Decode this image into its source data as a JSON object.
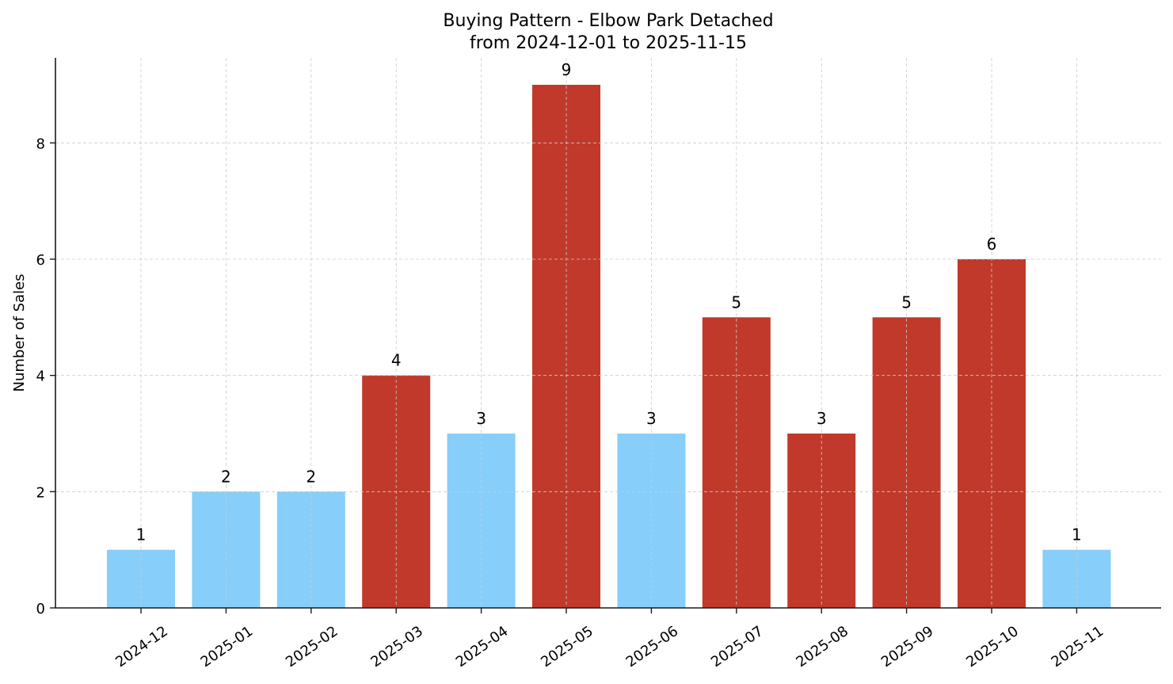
{
  "chart_data": {
    "type": "bar",
    "title": "Buying Pattern - Elbow Park Detached",
    "subtitle": "from 2024-12-01 to 2025-11-15",
    "xlabel": "",
    "ylabel": "Number of Sales",
    "categories": [
      "2024-12",
      "2025-01",
      "2025-02",
      "2025-03",
      "2025-04",
      "2025-05",
      "2025-06",
      "2025-07",
      "2025-08",
      "2025-09",
      "2025-10",
      "2025-11"
    ],
    "values": [
      1,
      2,
      2,
      4,
      3,
      9,
      3,
      5,
      3,
      5,
      6,
      1
    ],
    "bar_colors": [
      "#87CEFA",
      "#87CEFA",
      "#87CEFA",
      "#C0392B",
      "#87CEFA",
      "#C0392B",
      "#87CEFA",
      "#C0392B",
      "#C0392B",
      "#C0392B",
      "#C0392B",
      "#87CEFA"
    ],
    "data_labels": [
      "1",
      "2",
      "2",
      "4",
      "3",
      "9",
      "3",
      "5",
      "3",
      "5",
      "6",
      "1"
    ],
    "yticks": [
      0,
      2,
      4,
      6,
      8
    ],
    "ylim": [
      0,
      9.45
    ],
    "grid": true,
    "x_tick_rotation": -35,
    "legend": null
  },
  "colors": {
    "low": "#87CEFA",
    "high": "#C0392B",
    "grid": "#cccccc",
    "axis": "#1a1a1a"
  }
}
